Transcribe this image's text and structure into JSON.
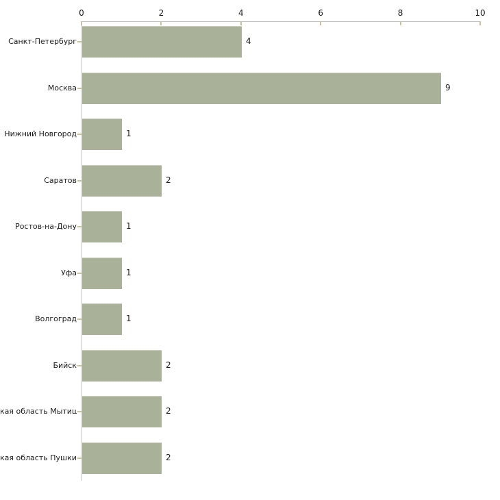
{
  "chart_data": {
    "type": "bar",
    "orientation": "horizontal",
    "categories": [
      "Санкт-Петербург",
      "Москва",
      "Нижний Новгород",
      "Саратов",
      "Ростов-на-Дону",
      "Уфа",
      "Волгоград",
      "Бийск",
      "кая область Мытищи",
      "кая область Пушкино"
    ],
    "values": [
      4,
      9,
      1,
      2,
      1,
      1,
      1,
      2,
      2,
      2
    ],
    "value_labels": [
      "4",
      "9",
      "1",
      "2",
      "1",
      "1",
      "1",
      "2",
      "2",
      "2"
    ],
    "xlim": [
      0,
      10
    ],
    "xticks": [
      0,
      2,
      4,
      6,
      8,
      10
    ],
    "xtick_labels": [
      "0",
      "2",
      "4",
      "6",
      "8",
      "10"
    ],
    "grid": false,
    "legend": false,
    "colors": {
      "bar_fill": "#a9b198",
      "bar_top_edge": "#c9cdbc",
      "axis_line": "#c3c3c3",
      "tick_mark": "#c9c29c",
      "text": "#1a1a1a",
      "background": "#ffffff"
    }
  }
}
